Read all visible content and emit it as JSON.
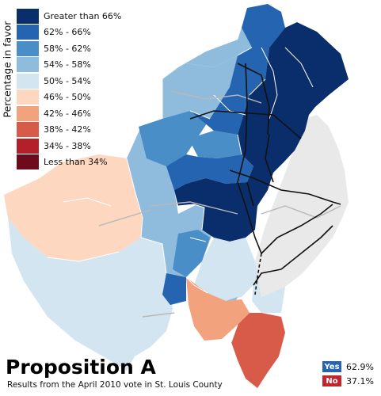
{
  "title": "Proposition A",
  "subtitle": "Results from the April 2010 vote in St. Louis County",
  "legend": {
    "title": "Percentage in favor",
    "items": [
      {
        "label": "Greater than 66%",
        "color": "#0a2d6b"
      },
      {
        "label": "62% - 66%",
        "color": "#2464b0"
      },
      {
        "label": "58% - 62%",
        "color": "#4a8ec8"
      },
      {
        "label": "54% - 58%",
        "color": "#8fbcdc"
      },
      {
        "label": "50% - 54%",
        "color": "#d3e5f1"
      },
      {
        "label": "46% - 50%",
        "color": "#fdd7c0"
      },
      {
        "label": "42% - 46%",
        "color": "#f3a27e"
      },
      {
        "label": "38% - 42%",
        "color": "#d85a48"
      },
      {
        "label": "34% - 38%",
        "color": "#b3202a"
      },
      {
        "label": "Less than 34%",
        "color": "#6e0a1c"
      }
    ]
  },
  "results": [
    {
      "label": "Yes",
      "value": "62.9%",
      "color": "#2464b0"
    },
    {
      "label": "No",
      "value": "37.1%",
      "color": "#c0262d"
    }
  ],
  "map_colors": {
    "city": "#e9e9e9",
    "road": "#111111",
    "boundary": "#ffffff"
  }
}
